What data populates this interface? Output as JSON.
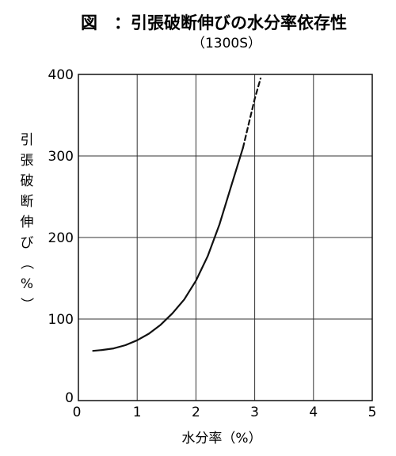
{
  "chart_data": {
    "type": "line",
    "title": "図　：引張破断伸びの水分率依存性",
    "subtitle": "（1300S）",
    "xlabel": "水分率（%）",
    "ylabel": [
      "引",
      "張",
      "破",
      "断",
      "伸",
      "び",
      "（",
      "%",
      "）"
    ],
    "xlim": [
      0,
      5
    ],
    "ylim": [
      0,
      400
    ],
    "x_ticks": [
      "0",
      "1",
      "2",
      "3",
      "4",
      "5"
    ],
    "y_ticks": [
      "0",
      "100",
      "200",
      "300",
      "400"
    ],
    "grid": true,
    "series": [
      {
        "style": "solid",
        "color": "#111111",
        "x": [
          0.25,
          0.4,
          0.6,
          0.8,
          1.0,
          1.2,
          1.4,
          1.6,
          1.8,
          2.0,
          2.2,
          2.4,
          2.6,
          2.8
        ],
        "y": [
          61,
          62,
          64,
          68,
          74,
          82,
          93,
          107,
          124,
          147,
          177,
          216,
          263,
          310
        ]
      },
      {
        "style": "dashed",
        "color": "#111111",
        "x": [
          2.8,
          2.9,
          3.0,
          3.1
        ],
        "y": [
          310,
          340,
          370,
          395
        ]
      }
    ]
  }
}
